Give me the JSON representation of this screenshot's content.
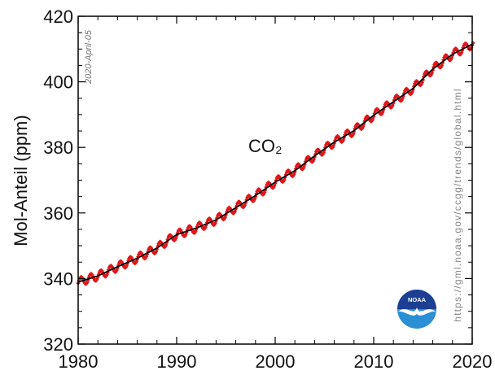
{
  "chart_data": {
    "type": "line",
    "title": "",
    "annotation": "CO₂",
    "ylabel": "Mol-Anteil (ppm)",
    "xlabel": "",
    "xlim": [
      1980,
      2020
    ],
    "ylim": [
      320,
      420
    ],
    "x_ticks": [
      "1980",
      "1990",
      "2000",
      "2010",
      "2020"
    ],
    "y_ticks": [
      "320",
      "340",
      "360",
      "380",
      "400",
      "420"
    ],
    "date_stamp": "2020-April-05",
    "source_url": "https://gml.noaa.gov/ccgg/trends/global.html",
    "grid": false,
    "series": [
      {
        "style": "red diamond markers, monthly means",
        "color": "#e0161b",
        "x": [
          1980,
          1982,
          1984,
          1986,
          1988,
          1990,
          1992,
          1994,
          1996,
          1998,
          2000,
          2002,
          2004,
          2006,
          2008,
          2010,
          2012,
          2014,
          2016,
          2018,
          2020
        ],
        "y": [
          338.9,
          340.8,
          343.6,
          346.2,
          349.3,
          353.4,
          355.4,
          357.9,
          361.6,
          365.3,
          369.4,
          372.9,
          377.4,
          381.6,
          385.1,
          389.8,
          393.9,
          398.0,
          403.9,
          408.4,
          411.5
        ],
        "seasonal_amplitude": 1.3
      },
      {
        "style": "black line, seasonally corrected trend",
        "color": "#000000",
        "x": [
          1980,
          1982,
          1984,
          1986,
          1988,
          1990,
          1992,
          1994,
          1996,
          1998,
          2000,
          2002,
          2004,
          2006,
          2008,
          2010,
          2012,
          2014,
          2016,
          2018,
          2020
        ],
        "y": [
          338.9,
          340.8,
          343.6,
          346.2,
          349.3,
          353.4,
          355.4,
          357.9,
          361.6,
          365.3,
          369.4,
          372.9,
          377.4,
          381.6,
          385.1,
          389.8,
          393.9,
          398.0,
          403.9,
          408.4,
          411.5
        ]
      }
    ]
  },
  "logo": {
    "text": "NOAA",
    "colors": {
      "top": "#1c3f94",
      "bottom": "#2b8fd6",
      "gull": "#ffffff"
    }
  }
}
